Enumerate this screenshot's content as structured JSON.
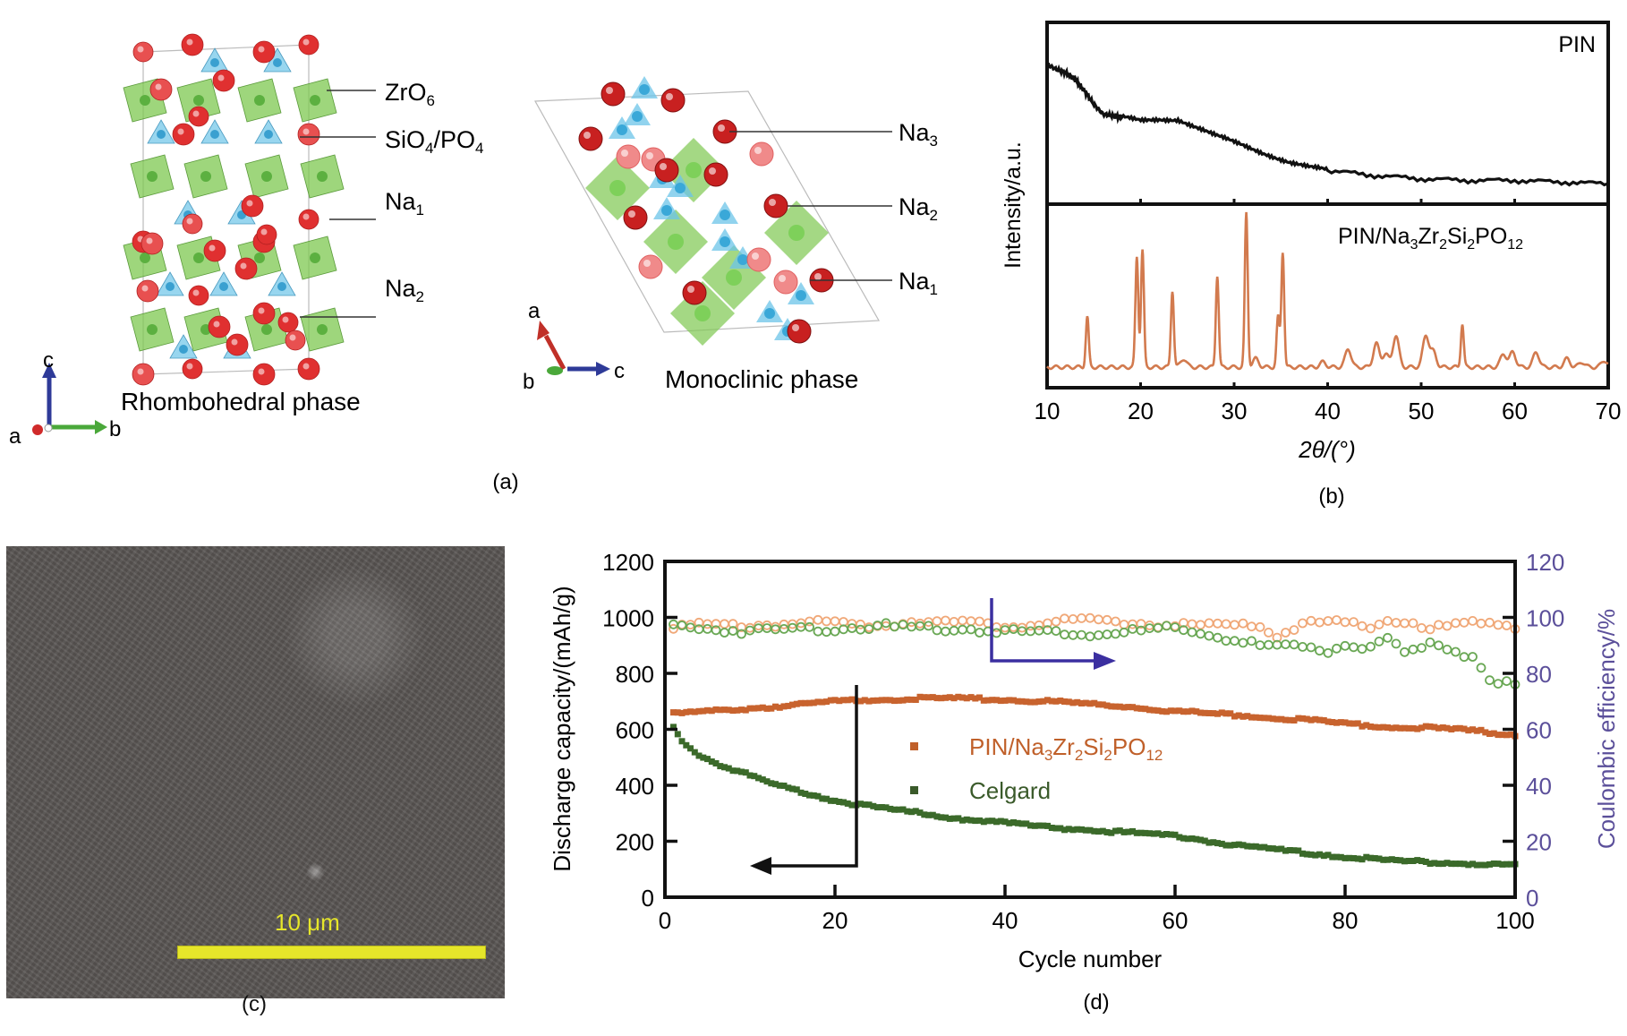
{
  "figure": {
    "panel_labels": {
      "a": "(a)",
      "b": "(b)",
      "c": "(c)",
      "d": "(d)"
    }
  },
  "panel_a": {
    "rhombohedral": {
      "title": "Rhombohedral phase",
      "labels": [
        {
          "base": "ZrO",
          "sub": "6",
          "tail": ""
        },
        {
          "base": "SiO",
          "sub": "4",
          "tail": "/PO",
          "sub2": "4"
        },
        {
          "base": "Na",
          "sub": "1"
        },
        {
          "base": "Na",
          "sub": "2"
        }
      ],
      "axes": {
        "up": "c",
        "right": "b",
        "origin": "a"
      }
    },
    "monoclinic": {
      "title": "Monoclinic phase",
      "labels": [
        {
          "base": "Na",
          "sub": "3"
        },
        {
          "base": "Na",
          "sub": "2"
        },
        {
          "base": "Na",
          "sub": "1"
        }
      ],
      "axes": {
        "up": "a",
        "right": "c",
        "origin": "b"
      }
    },
    "colors": {
      "zro6": "#7ec850",
      "sio4": "#6cc4e8",
      "na": "#e03030",
      "na_light": "#f08a8a"
    }
  },
  "panel_c": {
    "scale_bar_label": "10 μm",
    "scale_bar_color": "#e6e62a"
  },
  "chart_data": [
    {
      "type": "line",
      "title": "",
      "xlabel": "2θ/(°)",
      "ylabel": "Intensity/a.u.",
      "xlim": [
        10,
        70
      ],
      "xticks": [
        10,
        20,
        30,
        40,
        50,
        60,
        70
      ],
      "series": [
        {
          "name": "PIN",
          "label": "PIN",
          "color": "#111111",
          "x": [
            10,
            11,
            12,
            13,
            14,
            15,
            16,
            17,
            18,
            20,
            22,
            24,
            26,
            28,
            30,
            32,
            34,
            36,
            38,
            40,
            45,
            50,
            55,
            60,
            65,
            70
          ],
          "y": [
            0.8,
            0.77,
            0.75,
            0.71,
            0.64,
            0.56,
            0.5,
            0.49,
            0.48,
            0.46,
            0.47,
            0.47,
            0.42,
            0.37,
            0.33,
            0.29,
            0.25,
            0.21,
            0.18,
            0.16,
            0.13,
            0.11,
            0.1,
            0.1,
            0.09,
            0.08
          ]
        },
        {
          "name": "PIN/Na3Zr2Si2PO12",
          "label": {
            "parts": [
              [
                "PIN/Na",
                ""
              ],
              [
                "3",
                "sub"
              ],
              [
                "Zr",
                ""
              ],
              [
                "2",
                "sub"
              ],
              [
                "Si",
                ""
              ],
              [
                "2",
                "sub"
              ],
              [
                "PO",
                ""
              ],
              [
                "12",
                "sub"
              ]
            ]
          },
          "color": "#d27a4e",
          "baseline": 0.08,
          "peaks": [
            {
              "x": 14.3,
              "h": 0.38
            },
            {
              "x": 19.6,
              "h": 0.74
            },
            {
              "x": 20.2,
              "h": 0.78
            },
            {
              "x": 23.4,
              "h": 0.54
            },
            {
              "x": 24.6,
              "h": 0.13
            },
            {
              "x": 28.2,
              "h": 0.63
            },
            {
              "x": 31.3,
              "h": 1.0
            },
            {
              "x": 32.3,
              "h": 0.13
            },
            {
              "x": 34.7,
              "h": 0.38
            },
            {
              "x": 35.2,
              "h": 0.77
            },
            {
              "x": 39.5,
              "h": 0.11
            },
            {
              "x": 42.2,
              "h": 0.19
            },
            {
              "x": 45.2,
              "h": 0.22
            },
            {
              "x": 46.2,
              "h": 0.16
            },
            {
              "x": 47.3,
              "h": 0.27
            },
            {
              "x": 50.5,
              "h": 0.27
            },
            {
              "x": 51.3,
              "h": 0.17
            },
            {
              "x": 54.4,
              "h": 0.34
            },
            {
              "x": 58.8,
              "h": 0.16
            },
            {
              "x": 59.8,
              "h": 0.17
            },
            {
              "x": 62.3,
              "h": 0.17
            },
            {
              "x": 65.6,
              "h": 0.13
            },
            {
              "x": 67.2,
              "h": 0.11
            },
            {
              "x": 69.6,
              "h": 0.12
            }
          ]
        }
      ]
    },
    {
      "type": "scatter",
      "title": "",
      "xlabel": "Cycle number",
      "ylabel": "Discharge capacity/(mAh/g)",
      "y2label": "Coulombic efficiency/%",
      "xlim": [
        0,
        100
      ],
      "ylim": [
        0,
        1200
      ],
      "y2lim": [
        0,
        120
      ],
      "xticks": [
        0,
        20,
        40,
        60,
        80,
        100
      ],
      "yticks": [
        0,
        200,
        400,
        600,
        800,
        1000,
        1200
      ],
      "y2ticks": [
        0,
        20,
        40,
        60,
        80,
        100,
        120
      ],
      "legend_position": "center",
      "series": [
        {
          "name": "PIN/Na3Zr2Si2PO12",
          "axis": "left",
          "color": "#c8632e",
          "marker": "square",
          "x": [
            1,
            5,
            10,
            15,
            20,
            25,
            30,
            35,
            40,
            45,
            50,
            55,
            60,
            65,
            70,
            75,
            80,
            85,
            90,
            95,
            100
          ],
          "y": [
            655,
            665,
            675,
            685,
            700,
            707,
            710,
            710,
            705,
            700,
            690,
            680,
            665,
            655,
            645,
            635,
            620,
            610,
            605,
            595,
            580
          ]
        },
        {
          "name": "Celgard",
          "axis": "left",
          "color": "#3b6a2a",
          "marker": "square",
          "x": [
            1,
            2,
            4,
            6,
            8,
            10,
            12,
            15,
            20,
            25,
            30,
            35,
            40,
            45,
            50,
            55,
            60,
            65,
            70,
            75,
            80,
            85,
            90,
            95,
            100
          ],
          "y": [
            610,
            560,
            510,
            480,
            455,
            435,
            410,
            385,
            345,
            320,
            300,
            280,
            265,
            250,
            240,
            230,
            220,
            195,
            175,
            160,
            145,
            130,
            125,
            120,
            115
          ]
        },
        {
          "name": "PIN/Na3Zr2Si2PO12 CE",
          "axis": "right",
          "color": "#f0a878",
          "marker": "circle-open",
          "x": [
            1,
            5,
            10,
            15,
            20,
            25,
            30,
            35,
            40,
            45,
            50,
            55,
            60,
            65,
            70,
            72,
            75,
            80,
            83,
            85,
            88,
            90,
            95,
            100
          ],
          "y": [
            97,
            97,
            97,
            98,
            98,
            97,
            99,
            98,
            97,
            98,
            99,
            98,
            97,
            97,
            97,
            93,
            98,
            98,
            96,
            99,
            98,
            96,
            98,
            97
          ]
        },
        {
          "name": "Celgard CE",
          "axis": "right",
          "color": "#6aa855",
          "marker": "circle-open",
          "x": [
            1,
            5,
            10,
            15,
            20,
            25,
            30,
            35,
            40,
            45,
            50,
            55,
            60,
            65,
            70,
            75,
            78,
            80,
            82,
            85,
            87,
            90,
            92,
            95,
            97,
            100
          ],
          "y": [
            97,
            96,
            95,
            96,
            96,
            97,
            96,
            96,
            95,
            95,
            94,
            95,
            96,
            93,
            90,
            89,
            88,
            91,
            89,
            92,
            87,
            90,
            89,
            86,
            78,
            76
          ]
        }
      ],
      "legend": [
        {
          "series": "PIN/Na3Zr2Si2PO12",
          "parts": [
            [
              "PIN/Na",
              ""
            ],
            [
              "3",
              "sub"
            ],
            [
              "Zr",
              ""
            ],
            [
              "2",
              "sub"
            ],
            [
              "Si",
              ""
            ],
            [
              "2",
              "sub"
            ],
            [
              "PO",
              ""
            ],
            [
              "12",
              "sub"
            ]
          ],
          "color": "#c0602a"
        },
        {
          "series": "Celgard",
          "parts": [
            [
              "Celgard",
              ""
            ]
          ],
          "color": "#3a5a2a"
        }
      ],
      "annotations": [
        {
          "type": "arrow",
          "direction": "left",
          "meaning": "capacity axis",
          "color": "#111111"
        },
        {
          "type": "arrow",
          "direction": "right",
          "meaning": "efficiency axis",
          "color": "#3b2fa0"
        }
      ],
      "y2_color": "#5b4f9a"
    }
  ]
}
